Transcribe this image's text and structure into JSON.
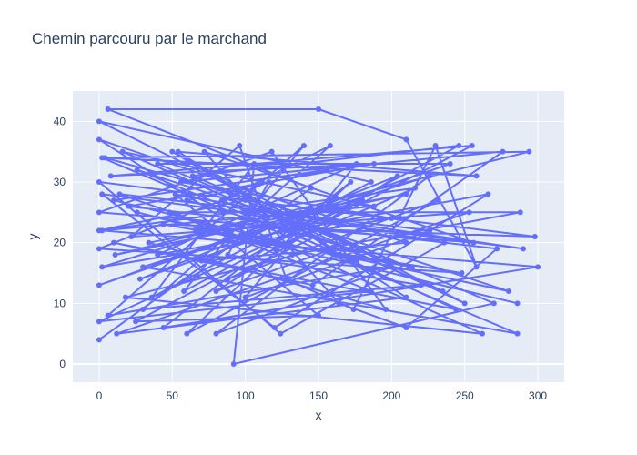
{
  "chart_data": {
    "type": "line",
    "title": "Chemin parcouru par le marchand",
    "xlabel": "x",
    "ylabel": "y",
    "xlim": [
      -18,
      318
    ],
    "ylim": [
      -3,
      45
    ],
    "x_ticks": [
      0,
      50,
      100,
      150,
      200,
      250,
      300
    ],
    "y_ticks": [
      0,
      10,
      20,
      30,
      40
    ],
    "grid": true,
    "colors": {
      "series": "#636efa",
      "plot_bg": "#e5ecf6",
      "grid": "#ffffff",
      "text": "#2a3f5f"
    },
    "series": [
      {
        "mode": "lines+markers",
        "points": [
          [
            0,
            4
          ],
          [
            145,
            29
          ],
          [
            6,
            42
          ],
          [
            150,
            42
          ],
          [
            210,
            37
          ],
          [
            258,
            16
          ],
          [
            230,
            36
          ],
          [
            174,
            9
          ],
          [
            128,
            14
          ],
          [
            96,
            36
          ],
          [
            22,
            21
          ],
          [
            253,
            25
          ],
          [
            12,
            5
          ],
          [
            210,
            11
          ],
          [
            54,
            35
          ],
          [
            258,
            31
          ],
          [
            2,
            34
          ],
          [
            286,
            5
          ],
          [
            30,
            16
          ],
          [
            226,
            31
          ],
          [
            80,
            5
          ],
          [
            200,
            16
          ],
          [
            6,
            8
          ],
          [
            140,
            36
          ],
          [
            58,
            12
          ],
          [
            246,
            36
          ],
          [
            64,
            31
          ],
          [
            270,
            10
          ],
          [
            92,
            0
          ],
          [
            106,
            33
          ],
          [
            36,
            11
          ],
          [
            186,
            30
          ],
          [
            0,
            40
          ],
          [
            235,
            12
          ],
          [
            16,
            35
          ],
          [
            188,
            26
          ],
          [
            2,
            22
          ],
          [
            300,
            16
          ],
          [
            44,
            6
          ],
          [
            172,
            30
          ],
          [
            60,
            5
          ],
          [
            232,
            27
          ],
          [
            88,
            14
          ],
          [
            165,
            23
          ],
          [
            4,
            34
          ],
          [
            294,
            35
          ],
          [
            11,
            18
          ],
          [
            210,
            28
          ],
          [
            34,
            20
          ],
          [
            196,
            9
          ],
          [
            118,
            35
          ],
          [
            0,
            25
          ],
          [
            256,
            20
          ],
          [
            72,
            35
          ],
          [
            164,
            10
          ],
          [
            210,
            6
          ],
          [
            272,
            19
          ],
          [
            20,
            26
          ],
          [
            188,
            33
          ],
          [
            8,
            31
          ],
          [
            255,
            36
          ],
          [
            25,
            7
          ],
          [
            150,
            8
          ],
          [
            52,
            28
          ],
          [
            236,
            20
          ],
          [
            124,
            5
          ],
          [
            0,
            30
          ],
          [
            298,
            21
          ],
          [
            44,
            23
          ],
          [
            214,
            16
          ],
          [
            60,
            27
          ],
          [
            156,
            32
          ],
          [
            10,
            27
          ],
          [
            176,
            17
          ],
          [
            26,
            32
          ],
          [
            280,
            12
          ],
          [
            104,
            21
          ],
          [
            0,
            37
          ],
          [
            210,
            20
          ],
          [
            70,
            17
          ],
          [
            138,
            25
          ],
          [
            0,
            13
          ],
          [
            240,
            33
          ],
          [
            40,
            33
          ],
          [
            168,
            20
          ],
          [
            18,
            11
          ],
          [
            262,
            5
          ],
          [
            96,
            23
          ],
          [
            2,
            16
          ],
          [
            200,
            24
          ],
          [
            56,
            30
          ],
          [
            276,
            35
          ],
          [
            146,
            13
          ],
          [
            10,
            20
          ],
          [
            244,
            9
          ],
          [
            84,
            27
          ],
          [
            158,
            36
          ],
          [
            30,
            9
          ],
          [
            220,
            13
          ],
          [
            88,
            18
          ],
          [
            116,
            30
          ],
          [
            0,
            19
          ],
          [
            248,
            15
          ],
          [
            66,
            22
          ],
          [
            180,
            27
          ],
          [
            0,
            7
          ],
          [
            186,
            12
          ],
          [
            48,
            25
          ],
          [
            288,
            25
          ],
          [
            132,
            18
          ],
          [
            14,
            28
          ],
          [
            226,
            22
          ],
          [
            100,
            11
          ],
          [
            176,
            33
          ],
          [
            40,
            18
          ],
          [
            266,
            28
          ],
          [
            120,
            6
          ],
          [
            2,
            28
          ],
          [
            290,
            19
          ],
          [
            148,
            24
          ],
          [
            28,
            14
          ],
          [
            204,
            31
          ],
          [
            80,
            12
          ],
          [
            160,
            19
          ],
          [
            50,
            35
          ],
          [
            250,
            10
          ],
          [
            100,
            27
          ],
          [
            0,
            22
          ],
          [
            216,
            29
          ],
          [
            120,
            19
          ],
          [
            26,
            25
          ],
          [
            286,
            10
          ]
        ]
      }
    ]
  }
}
